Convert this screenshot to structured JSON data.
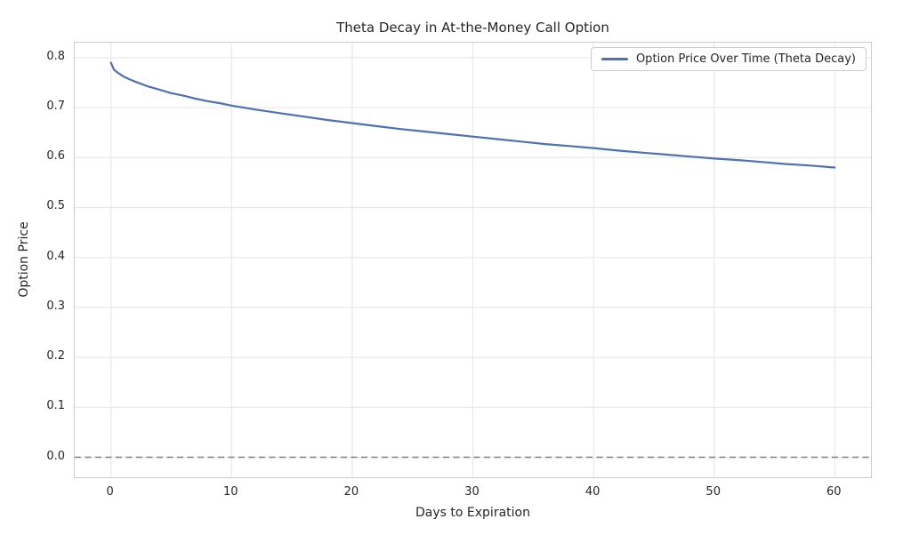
{
  "figure": {
    "background": "#FFFFFF"
  },
  "chart_data": {
    "type": "line",
    "title": "Theta Decay in At-the-Money Call Option",
    "xlabel": "Days to Expiration",
    "ylabel": "Option Price",
    "xlim": [
      -3,
      63
    ],
    "ylim": [
      -0.04,
      0.83
    ],
    "xticks": [
      0,
      10,
      20,
      30,
      40,
      50,
      60
    ],
    "yticks": [
      0.0,
      0.1,
      0.2,
      0.3,
      0.4,
      0.5,
      0.6,
      0.7,
      0.8
    ],
    "grid": true,
    "legend": {
      "position": "upper-right",
      "entries": [
        {
          "label": "Option Price Over Time (Theta Decay)",
          "color": "#4C72B0"
        }
      ]
    },
    "reference_lines": [
      {
        "y": 0.0,
        "style": "dashed",
        "color": "#7F7F7F"
      }
    ],
    "colors": {
      "line": "#4C72B0",
      "grid": "#E8E8E8",
      "spine": "#CCCCCC",
      "text": "#262626"
    },
    "series": [
      {
        "name": "Option Price Over Time (Theta Decay)",
        "color": "#4C72B0",
        "x": [
          0,
          0.25,
          0.5,
          1,
          1.5,
          2,
          3,
          4,
          5,
          6,
          7,
          8,
          9,
          10,
          12,
          14,
          16,
          18,
          20,
          22,
          24,
          26,
          28,
          30,
          32,
          34,
          36,
          38,
          40,
          42,
          44,
          46,
          48,
          50,
          52,
          54,
          56,
          58,
          60
        ],
        "y": [
          0.79,
          0.776,
          0.771,
          0.763,
          0.757,
          0.752,
          0.743,
          0.736,
          0.729,
          0.724,
          0.718,
          0.713,
          0.709,
          0.704,
          0.696,
          0.689,
          0.682,
          0.675,
          0.669,
          0.663,
          0.657,
          0.652,
          0.647,
          0.642,
          0.637,
          0.632,
          0.627,
          0.623,
          0.619,
          0.614,
          0.61,
          0.606,
          0.602,
          0.598,
          0.595,
          0.591,
          0.587,
          0.584,
          0.58
        ]
      }
    ]
  }
}
